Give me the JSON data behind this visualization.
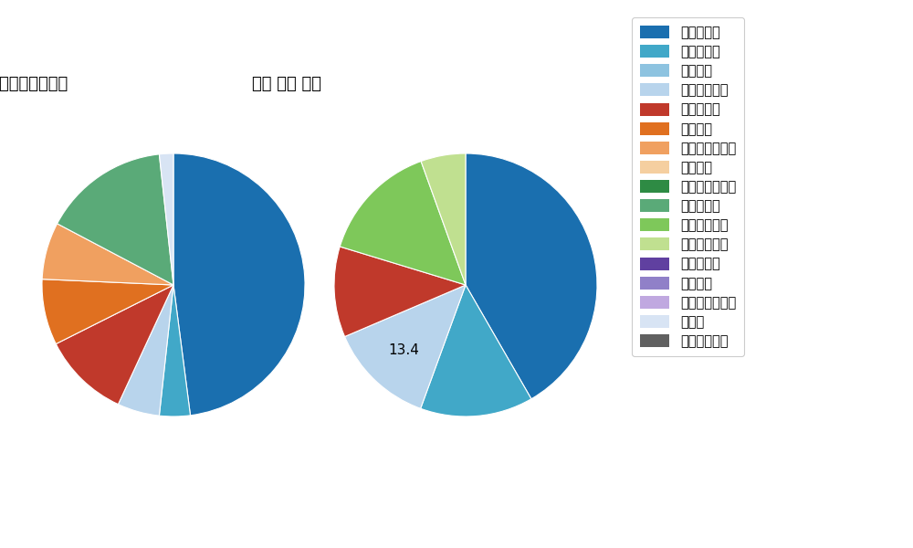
{
  "left_title": "パ・リーグ全プレイヤー",
  "right_title": "若月 健矢 選手",
  "pitch_types": [
    "ストレート",
    "ツーシーム",
    "シュート",
    "カットボール",
    "スプリット",
    "フォーク",
    "チェンジアップ",
    "シンカー",
    "高速スライダー",
    "スライダー",
    "縦スライダー",
    "パワーカーブ",
    "スクリュー",
    "ナックル",
    "ナックルカーブ",
    "カーブ",
    "スローカーブ"
  ],
  "colors": [
    "#1a6faf",
    "#41a8c8",
    "#8dc3e0",
    "#b8d4ec",
    "#c0392b",
    "#e07020",
    "#f0a060",
    "#f5cfa0",
    "#2e8b44",
    "#5aaa78",
    "#7ec85a",
    "#c0e090",
    "#6040a0",
    "#9080c8",
    "#c0a8e0",
    "#d8e4f4",
    "#606060"
  ],
  "left_values": [
    44.4,
    3.5,
    0,
    4.8,
    9.9,
    7.5,
    6.5,
    0,
    0,
    14.4,
    0,
    0,
    0,
    0,
    0,
    1.6,
    0
  ],
  "left_show_label": [
    true,
    false,
    false,
    false,
    true,
    false,
    false,
    false,
    false,
    true,
    false,
    false,
    false,
    false,
    false,
    false,
    false
  ],
  "right_values": [
    37.8,
    12.6,
    0,
    11.8,
    10.1,
    0,
    0,
    0,
    0,
    0,
    13.4,
    5.0,
    0,
    0,
    0,
    0,
    0
  ],
  "right_show_label": [
    true,
    true,
    false,
    true,
    true,
    false,
    false,
    false,
    false,
    false,
    true,
    true,
    false,
    false,
    false,
    false,
    false
  ]
}
